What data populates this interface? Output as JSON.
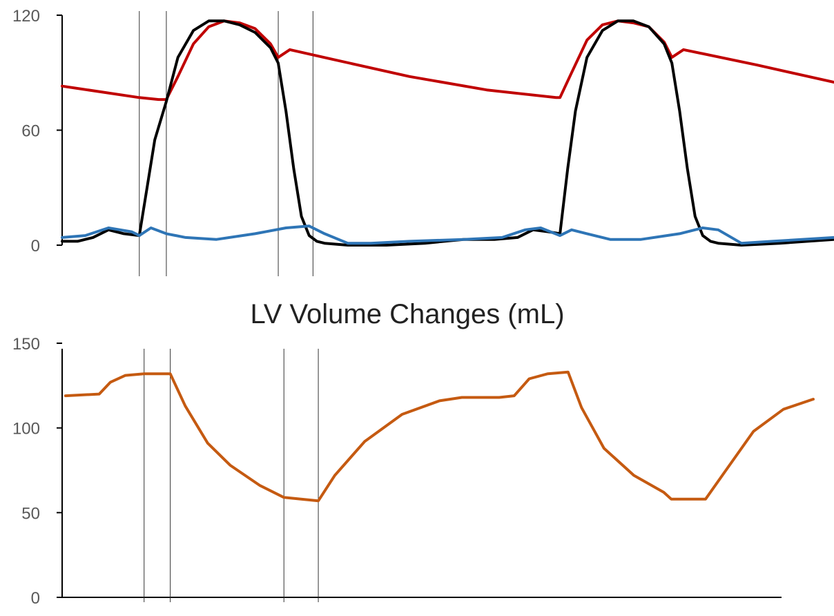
{
  "chart_data": [
    {
      "type": "line",
      "title": "",
      "xlabel": "",
      "ylabel": "",
      "ylim": [
        0,
        120
      ],
      "y_ticks": [
        "0",
        "60",
        "120"
      ],
      "grid": false,
      "legend": "none",
      "phase_markers": [
        0.1,
        0.135,
        0.28,
        0.325
      ],
      "series": [
        {
          "color": "#C00000",
          "x": [
            0.0,
            0.05,
            0.1,
            0.125,
            0.135,
            0.15,
            0.17,
            0.19,
            0.21,
            0.23,
            0.25,
            0.27,
            0.28,
            0.295,
            0.35,
            0.45,
            0.55,
            0.64,
            0.645,
            0.66,
            0.68,
            0.7,
            0.72,
            0.74,
            0.76,
            0.78,
            0.79,
            0.805,
            0.9,
            1.0
          ],
          "y": [
            83,
            80,
            77,
            76,
            76,
            88,
            105,
            114,
            117,
            116,
            113,
            105,
            98,
            102,
            97,
            88,
            81,
            77,
            77,
            90,
            107,
            115,
            117,
            116,
            114,
            106,
            98,
            102,
            94,
            85
          ]
        },
        {
          "color": "#000000",
          "x": [
            0.0,
            0.02,
            0.04,
            0.06,
            0.08,
            0.1,
            0.11,
            0.12,
            0.135,
            0.15,
            0.17,
            0.19,
            0.21,
            0.23,
            0.25,
            0.27,
            0.28,
            0.29,
            0.3,
            0.31,
            0.32,
            0.33,
            0.34,
            0.37,
            0.42,
            0.47,
            0.52,
            0.56,
            0.59,
            0.61,
            0.63,
            0.645,
            0.655,
            0.665,
            0.68,
            0.7,
            0.72,
            0.74,
            0.76,
            0.78,
            0.79,
            0.8,
            0.81,
            0.82,
            0.83,
            0.84,
            0.85,
            0.88,
            0.93,
            1.0
          ],
          "y": [
            2,
            2,
            4,
            8,
            6,
            5,
            30,
            55,
            75,
            98,
            112,
            117,
            117,
            115,
            111,
            103,
            95,
            70,
            40,
            15,
            5,
            2,
            1,
            0,
            0,
            1,
            3,
            3,
            4,
            8,
            7,
            6,
            40,
            70,
            98,
            112,
            117,
            117,
            114,
            105,
            95,
            70,
            40,
            15,
            5,
            2,
            1,
            0,
            1,
            3
          ]
        },
        {
          "color": "#2E75B6",
          "x": [
            0.0,
            0.03,
            0.06,
            0.09,
            0.1,
            0.115,
            0.135,
            0.16,
            0.2,
            0.25,
            0.29,
            0.32,
            0.34,
            0.37,
            0.4,
            0.45,
            0.52,
            0.57,
            0.6,
            0.62,
            0.645,
            0.66,
            0.68,
            0.71,
            0.75,
            0.8,
            0.83,
            0.85,
            0.88,
            0.92,
            1.0
          ],
          "y": [
            4,
            5,
            9,
            7,
            5,
            9,
            6,
            4,
            3,
            6,
            9,
            10,
            6,
            1,
            1,
            2,
            3,
            4,
            8,
            9,
            5,
            8,
            6,
            3,
            3,
            6,
            9,
            8,
            1,
            2,
            4
          ]
        }
      ]
    },
    {
      "type": "line",
      "title": "LV Volume Changes (mL)",
      "xlabel": "",
      "ylabel": "",
      "ylim": [
        0,
        150
      ],
      "y_ticks": [
        "0",
        "50",
        "100",
        "150"
      ],
      "grid": false,
      "legend": "none",
      "phase_markers": [
        0.105,
        0.14,
        0.292,
        0.338
      ],
      "series": [
        {
          "color": "#C55A11",
          "x": [
            0.0,
            0.045,
            0.06,
            0.08,
            0.105,
            0.14,
            0.16,
            0.19,
            0.22,
            0.26,
            0.292,
            0.338,
            0.36,
            0.4,
            0.45,
            0.5,
            0.53,
            0.58,
            0.6,
            0.62,
            0.645,
            0.672,
            0.69,
            0.72,
            0.76,
            0.8,
            0.81,
            0.856,
            0.88,
            0.92,
            0.96,
            1.0
          ],
          "y": [
            119,
            120,
            127,
            131,
            132,
            132,
            113,
            91,
            78,
            66,
            59,
            57,
            72,
            92,
            108,
            116,
            118,
            118,
            119,
            129,
            132,
            133,
            112,
            88,
            72,
            62,
            58,
            58,
            73,
            98,
            111,
            117
          ]
        }
      ]
    }
  ]
}
